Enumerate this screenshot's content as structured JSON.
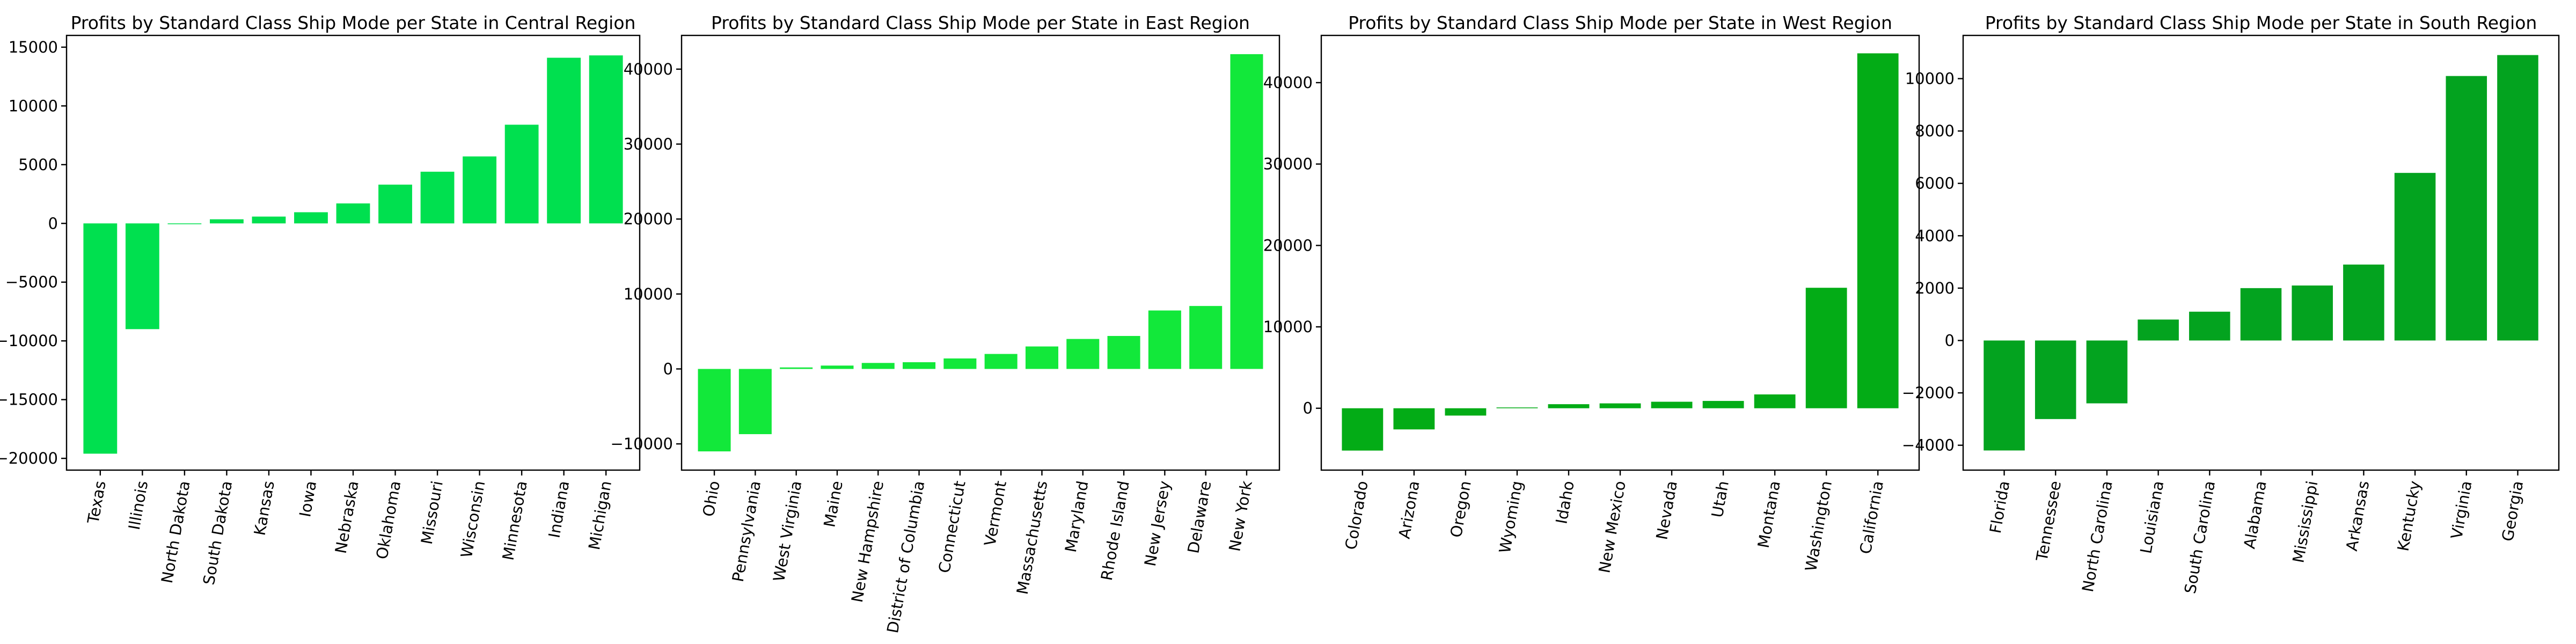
{
  "chart_data": [
    {
      "type": "bar",
      "title": "Profits by Standard Class Ship Mode per State in Central Region",
      "color": "#00e04f",
      "categories": [
        "Texas",
        "Illinois",
        "North Dakota",
        "South Dakota",
        "Kansas",
        "Iowa",
        "Nebraska",
        "Oklahoma",
        "Missouri",
        "Wisconsin",
        "Minnesota",
        "Indiana",
        "Michigan"
      ],
      "values": [
        -19600,
        -9000,
        -60,
        350,
        580,
        950,
        1700,
        3300,
        4400,
        5700,
        8400,
        14100,
        14300
      ],
      "ylim": [
        -21000,
        16000
      ],
      "yticks": [
        -20000,
        -15000,
        -10000,
        -5000,
        0,
        5000,
        10000,
        15000
      ],
      "ytick_labels": [
        "−20000",
        "−15000",
        "−10000",
        "−5000",
        "0",
        "5000",
        "10000",
        "15000"
      ]
    },
    {
      "type": "bar",
      "title": "Profits by Standard Class Ship Mode per State in East Region",
      "color": "#12e83a",
      "categories": [
        "Ohio",
        "Pennsylvania",
        "West Virginia",
        "Maine",
        "New Hampshire",
        "District of Columbia",
        "Connecticut",
        "Vermont",
        "Massachusetts",
        "Maryland",
        "Rhode Island",
        "New Jersey",
        "Delaware",
        "New York"
      ],
      "values": [
        -11000,
        -8700,
        200,
        450,
        800,
        900,
        1400,
        2000,
        3000,
        4000,
        4400,
        7800,
        8400,
        42000
      ],
      "ylim": [
        -13500,
        44500
      ],
      "yticks": [
        -10000,
        0,
        10000,
        20000,
        30000,
        40000
      ],
      "ytick_labels": [
        "−10000",
        "0",
        "10000",
        "20000",
        "30000",
        "40000"
      ]
    },
    {
      "type": "bar",
      "title": "Profits by Standard Class Ship Mode per State in West Region",
      "color": "#03ac16",
      "categories": [
        "Colorado",
        "Arizona",
        "Oregon",
        "Wyoming",
        "Idaho",
        "New Mexico",
        "Nevada",
        "Utah",
        "Montana",
        "Washington",
        "California"
      ],
      "values": [
        -5200,
        -2600,
        -900,
        100,
        500,
        600,
        800,
        900,
        1700,
        14800,
        43600
      ],
      "ylim": [
        -7600,
        45800
      ],
      "yticks": [
        0,
        10000,
        20000,
        30000,
        40000
      ],
      "ytick_labels": [
        "0",
        "10000",
        "20000",
        "30000",
        "40000"
      ]
    },
    {
      "type": "bar",
      "title": "Profits by Standard Class Ship Mode per State in South Region",
      "color": "#03a31f",
      "categories": [
        "Florida",
        "Tennessee",
        "North Carolina",
        "Louisiana",
        "South Carolina",
        "Alabama",
        "Mississippi",
        "Arkansas",
        "Kentucky",
        "Virginia",
        "Georgia"
      ],
      "values": [
        -4200,
        -3000,
        -2400,
        800,
        1100,
        2000,
        2100,
        2900,
        6400,
        10100,
        10900
      ],
      "ylim": [
        -4950,
        11650
      ],
      "yticks": [
        -4000,
        -2000,
        0,
        2000,
        4000,
        6000,
        8000,
        10000
      ],
      "ytick_labels": [
        "−4000",
        "−2000",
        "0",
        "2000",
        "4000",
        "6000",
        "8000",
        "10000"
      ]
    }
  ]
}
